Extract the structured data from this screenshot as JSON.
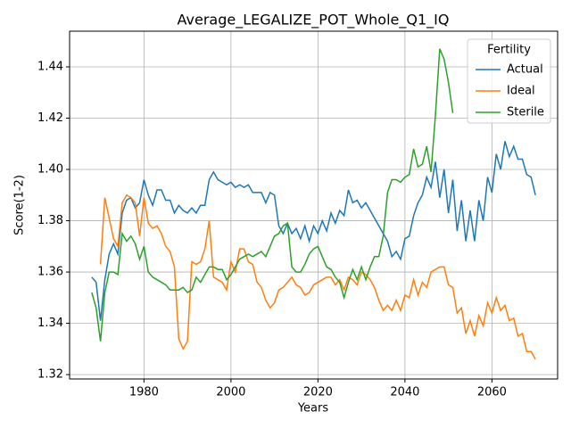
{
  "chart_data": {
    "type": "line",
    "title": "Average_LEGALIZE_POT_Whole_Q1_IQ",
    "x_label": "Years",
    "y_label": "Score(1-2)",
    "x": [
      1968,
      1969,
      1970,
      1971,
      1972,
      1973,
      1974,
      1975,
      1976,
      1977,
      1978,
      1979,
      1980,
      1981,
      1982,
      1983,
      1984,
      1985,
      1986,
      1987,
      1988,
      1989,
      1990,
      1991,
      1992,
      1993,
      1994,
      1995,
      1996,
      1997,
      1998,
      1999,
      2000,
      2001,
      2002,
      2003,
      2004,
      2005,
      2006,
      2007,
      2008,
      2009,
      2010,
      2011,
      2012,
      2013,
      2014,
      2015,
      2016,
      2017,
      2018,
      2019,
      2020,
      2021,
      2022,
      2023,
      2024,
      2025,
      2026,
      2027,
      2028,
      2029,
      2030,
      2031,
      2032,
      2033,
      2034,
      2035,
      2036,
      2037,
      2038,
      2039,
      2040,
      2041,
      2042,
      2043,
      2044,
      2045,
      2046,
      2047,
      2048,
      2049,
      2050,
      2051,
      2052,
      2053,
      2054,
      2055,
      2056,
      2057,
      2058,
      2059,
      2060,
      2061,
      2062,
      2063,
      2064,
      2065,
      2066,
      2067,
      2068,
      2069,
      2070
    ],
    "series": [
      {
        "name": "Actual",
        "color": "#1f77b4",
        "values": [
          1.358,
          1.356,
          1.341,
          1.357,
          1.367,
          1.371,
          1.367,
          1.383,
          1.388,
          1.389,
          1.385,
          1.387,
          1.396,
          1.39,
          1.386,
          1.392,
          1.392,
          1.388,
          1.388,
          1.383,
          1.386,
          1.384,
          1.383,
          1.385,
          1.383,
          1.386,
          1.386,
          1.396,
          1.399,
          1.396,
          1.395,
          1.394,
          1.395,
          1.393,
          1.394,
          1.393,
          1.394,
          1.391,
          1.391,
          1.391,
          1.387,
          1.391,
          1.39,
          1.378,
          1.375,
          1.379,
          1.375,
          1.377,
          1.373,
          1.378,
          1.372,
          1.378,
          1.375,
          1.38,
          1.376,
          1.383,
          1.379,
          1.384,
          1.382,
          1.392,
          1.387,
          1.388,
          1.385,
          1.387,
          1.384,
          1.381,
          1.378,
          1.375,
          1.372,
          1.366,
          1.368,
          1.365,
          1.373,
          1.374,
          1.382,
          1.387,
          1.39,
          1.397,
          1.393,
          1.403,
          1.389,
          1.4,
          1.383,
          1.396,
          1.376,
          1.388,
          1.372,
          1.384,
          1.372,
          1.388,
          1.38,
          1.397,
          1.391,
          1.406,
          1.4,
          1.411,
          1.405,
          1.409,
          1.404,
          1.404,
          1.398,
          1.397,
          1.39
        ]
      },
      {
        "name": "Ideal",
        "color": "#ff7f0e",
        "values": [
          null,
          null,
          1.363,
          1.389,
          1.381,
          1.373,
          1.37,
          1.387,
          1.39,
          1.389,
          1.387,
          1.374,
          1.389,
          1.379,
          1.377,
          1.378,
          1.375,
          1.37,
          1.368,
          1.362,
          1.334,
          1.33,
          1.333,
          1.364,
          1.363,
          1.364,
          1.369,
          1.38,
          1.358,
          1.357,
          1.356,
          1.353,
          1.364,
          1.36,
          1.369,
          1.369,
          1.364,
          1.363,
          1.356,
          1.354,
          1.349,
          1.346,
          1.348,
          1.353,
          1.354,
          1.356,
          1.358,
          1.355,
          1.354,
          1.351,
          1.352,
          1.355,
          1.356,
          1.357,
          1.358,
          1.358,
          1.355,
          1.357,
          1.353,
          1.358,
          1.357,
          1.355,
          1.36,
          1.359,
          1.357,
          1.354,
          1.349,
          1.345,
          1.347,
          1.345,
          1.349,
          1.345,
          1.351,
          1.35,
          1.357,
          1.351,
          1.356,
          1.354,
          1.36,
          1.361,
          1.362,
          1.362,
          1.355,
          1.354,
          1.344,
          1.346,
          1.336,
          1.341,
          1.335,
          1.343,
          1.339,
          1.348,
          1.344,
          1.35,
          1.345,
          1.347,
          1.341,
          1.342,
          1.335,
          1.336,
          1.329,
          1.329,
          1.326
        ]
      },
      {
        "name": "Sterile",
        "color": "#2ca02c",
        "values": [
          1.352,
          1.346,
          1.333,
          1.352,
          1.36,
          1.36,
          1.359,
          1.375,
          1.372,
          1.374,
          1.371,
          1.365,
          1.37,
          1.36,
          1.358,
          1.357,
          1.356,
          1.355,
          1.353,
          1.353,
          1.353,
          1.354,
          1.352,
          1.353,
          1.358,
          1.356,
          1.359,
          1.362,
          1.362,
          1.361,
          1.361,
          1.357,
          1.359,
          1.362,
          1.365,
          1.366,
          1.367,
          1.366,
          1.367,
          1.368,
          1.366,
          1.37,
          1.374,
          1.375,
          1.378,
          1.379,
          1.362,
          1.36,
          1.36,
          1.363,
          1.367,
          1.369,
          1.37,
          1.366,
          1.362,
          1.361,
          1.358,
          1.356,
          1.35,
          1.356,
          1.361,
          1.357,
          1.362,
          1.357,
          1.362,
          1.366,
          1.366,
          1.374,
          1.391,
          1.396,
          1.396,
          1.395,
          1.397,
          1.398,
          1.408,
          1.401,
          1.402,
          1.409,
          1.399,
          1.421,
          1.447,
          1.443,
          1.434,
          1.422,
          null,
          null,
          null,
          null,
          null,
          null,
          null,
          null,
          null,
          null,
          null,
          null,
          null,
          null,
          null,
          null,
          null,
          null,
          null
        ]
      }
    ],
    "xlim": [
      1962.9,
      2075.1
    ],
    "ylim": [
      1.3183,
      1.4539
    ],
    "xticks": [
      1980,
      2000,
      2020,
      2040,
      2060
    ],
    "yticks": [
      1.32,
      1.34,
      1.36,
      1.38,
      {
        "value": 1.4,
        "label": "1.40"
      },
      1.42,
      1.44
    ],
    "grid": true,
    "legend_title": "Fertility",
    "legend_loc": "upper right"
  }
}
